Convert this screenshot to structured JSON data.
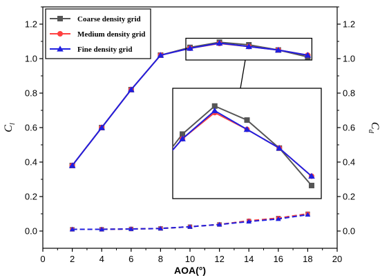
{
  "chart_data": {
    "type": "line",
    "xlabel": "AOA(°)",
    "ylabel_left": "C_l",
    "ylabel_right": "C_d",
    "xlim": [
      0,
      20
    ],
    "ylim_left": [
      -0.1,
      1.3
    ],
    "ylim_right": [
      -0.1,
      1.3
    ],
    "x_ticks": [
      "0",
      "2",
      "4",
      "6",
      "8",
      "10",
      "12",
      "14",
      "16",
      "18",
      "20"
    ],
    "y_ticks": [
      "0.0",
      "0.2",
      "0.4",
      "0.6",
      "0.8",
      "1.0",
      "1.2"
    ],
    "grid": false,
    "legend_position": "top-left",
    "x": [
      2,
      4,
      6,
      8,
      10,
      12,
      14,
      16,
      18
    ],
    "series": [
      {
        "name": "Coarse density grid",
        "color": "#555555",
        "marker": "square",
        "cl": [
          0.38,
          0.6,
          0.82,
          1.02,
          1.065,
          1.095,
          1.08,
          1.05,
          1.01
        ],
        "cd": [
          0.01,
          0.01,
          0.012,
          0.015,
          0.025,
          0.038,
          0.058,
          0.075,
          0.1
        ]
      },
      {
        "name": "Medium density grid",
        "color": "#ff4040",
        "marker": "circle",
        "cl": [
          0.38,
          0.6,
          0.82,
          1.02,
          1.06,
          1.088,
          1.07,
          1.05,
          1.02
        ],
        "cd": [
          0.01,
          0.01,
          0.012,
          0.015,
          0.025,
          0.038,
          0.06,
          0.075,
          0.1
        ]
      },
      {
        "name": "Fine density grid",
        "color": "#1f1fe0",
        "marker": "triangle",
        "cl": [
          0.38,
          0.6,
          0.82,
          1.02,
          1.06,
          1.09,
          1.07,
          1.05,
          1.02
        ],
        "cd": [
          0.01,
          0.01,
          0.012,
          0.015,
          0.025,
          0.038,
          0.055,
          0.07,
          0.095
        ]
      }
    ],
    "inset": {
      "x_range": [
        10,
        18
      ],
      "y_range": [
        1.0,
        1.11
      ]
    }
  }
}
